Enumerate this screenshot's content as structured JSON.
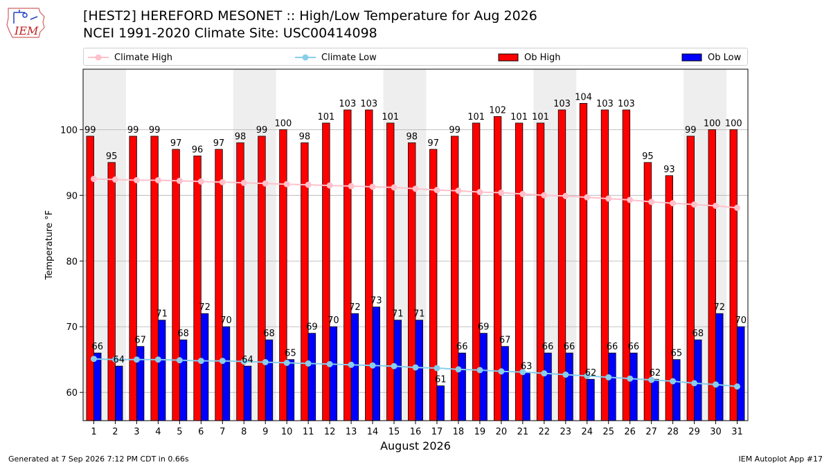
{
  "title_line1": "[HEST2] HEREFORD MESONET :: High/Low Temperature for Aug 2026",
  "title_line2": "NCEI 1991-2020 Climate Site: USC00414098",
  "logo_text": "IEM",
  "footer_left": "Generated at 7 Sep 2026 7:12 PM CDT in 0.66s",
  "footer_right": "IEM Autoplot App #17",
  "colors": {
    "climate_high": "#ffc0cb",
    "climate_low": "#87ceeb",
    "ob_high": "#ff0000",
    "ob_low": "#0000ff",
    "weekend_shade": "#eeeeee",
    "grid": "#b0b0b0"
  },
  "legend": {
    "climate_high": "Climate High",
    "climate_low": "Climate Low",
    "ob_high": "Ob High",
    "ob_low": "Ob Low"
  },
  "chart_data": {
    "type": "bar",
    "xlabel": "August 2026",
    "ylabel": "Temperature °F",
    "ylim": [
      55.7,
      109.2
    ],
    "yticks": [
      60,
      70,
      80,
      90,
      100
    ],
    "grid": "horizontal",
    "categories": [
      "1",
      "2",
      "3",
      "4",
      "5",
      "6",
      "7",
      "8",
      "9",
      "10",
      "11",
      "12",
      "13",
      "14",
      "15",
      "16",
      "17",
      "18",
      "19",
      "20",
      "21",
      "22",
      "23",
      "24",
      "25",
      "26",
      "27",
      "28",
      "29",
      "30",
      "31"
    ],
    "shaded_days": [
      1,
      2,
      8,
      9,
      15,
      16,
      22,
      23,
      29,
      30
    ],
    "series": [
      {
        "name": "Ob High",
        "kind": "bar",
        "values": [
          99,
          95,
          99,
          99,
          97,
          96,
          97,
          98,
          99,
          100,
          98,
          101,
          103,
          103,
          101,
          98,
          97,
          99,
          101,
          102,
          101,
          101,
          103,
          104,
          103,
          103,
          95,
          93,
          99,
          100,
          100
        ]
      },
      {
        "name": "Ob Low",
        "kind": "bar",
        "values": [
          66,
          64,
          67,
          71,
          68,
          72,
          70,
          64,
          68,
          65,
          69,
          70,
          72,
          73,
          71,
          71,
          61,
          66,
          69,
          67,
          63,
          66,
          66,
          62,
          66,
          66,
          62,
          65,
          68,
          72,
          70
        ]
      },
      {
        "name": "Climate High",
        "kind": "line",
        "values": [
          92.5,
          92.4,
          92.3,
          92.3,
          92.2,
          92.1,
          92.0,
          91.9,
          91.8,
          91.7,
          91.6,
          91.5,
          91.4,
          91.3,
          91.2,
          91.0,
          90.8,
          90.7,
          90.5,
          90.4,
          90.2,
          90.0,
          89.9,
          89.7,
          89.5,
          89.3,
          89.0,
          88.8,
          88.6,
          88.4,
          88.1
        ]
      },
      {
        "name": "Climate Low",
        "kind": "line",
        "values": [
          65.1,
          65.0,
          65.0,
          65.0,
          64.9,
          64.8,
          64.8,
          64.7,
          64.6,
          64.5,
          64.4,
          64.3,
          64.2,
          64.1,
          64.0,
          63.8,
          63.7,
          63.5,
          63.4,
          63.2,
          63.1,
          62.9,
          62.7,
          62.5,
          62.3,
          62.1,
          61.9,
          61.7,
          61.4,
          61.2,
          60.9
        ]
      }
    ]
  }
}
